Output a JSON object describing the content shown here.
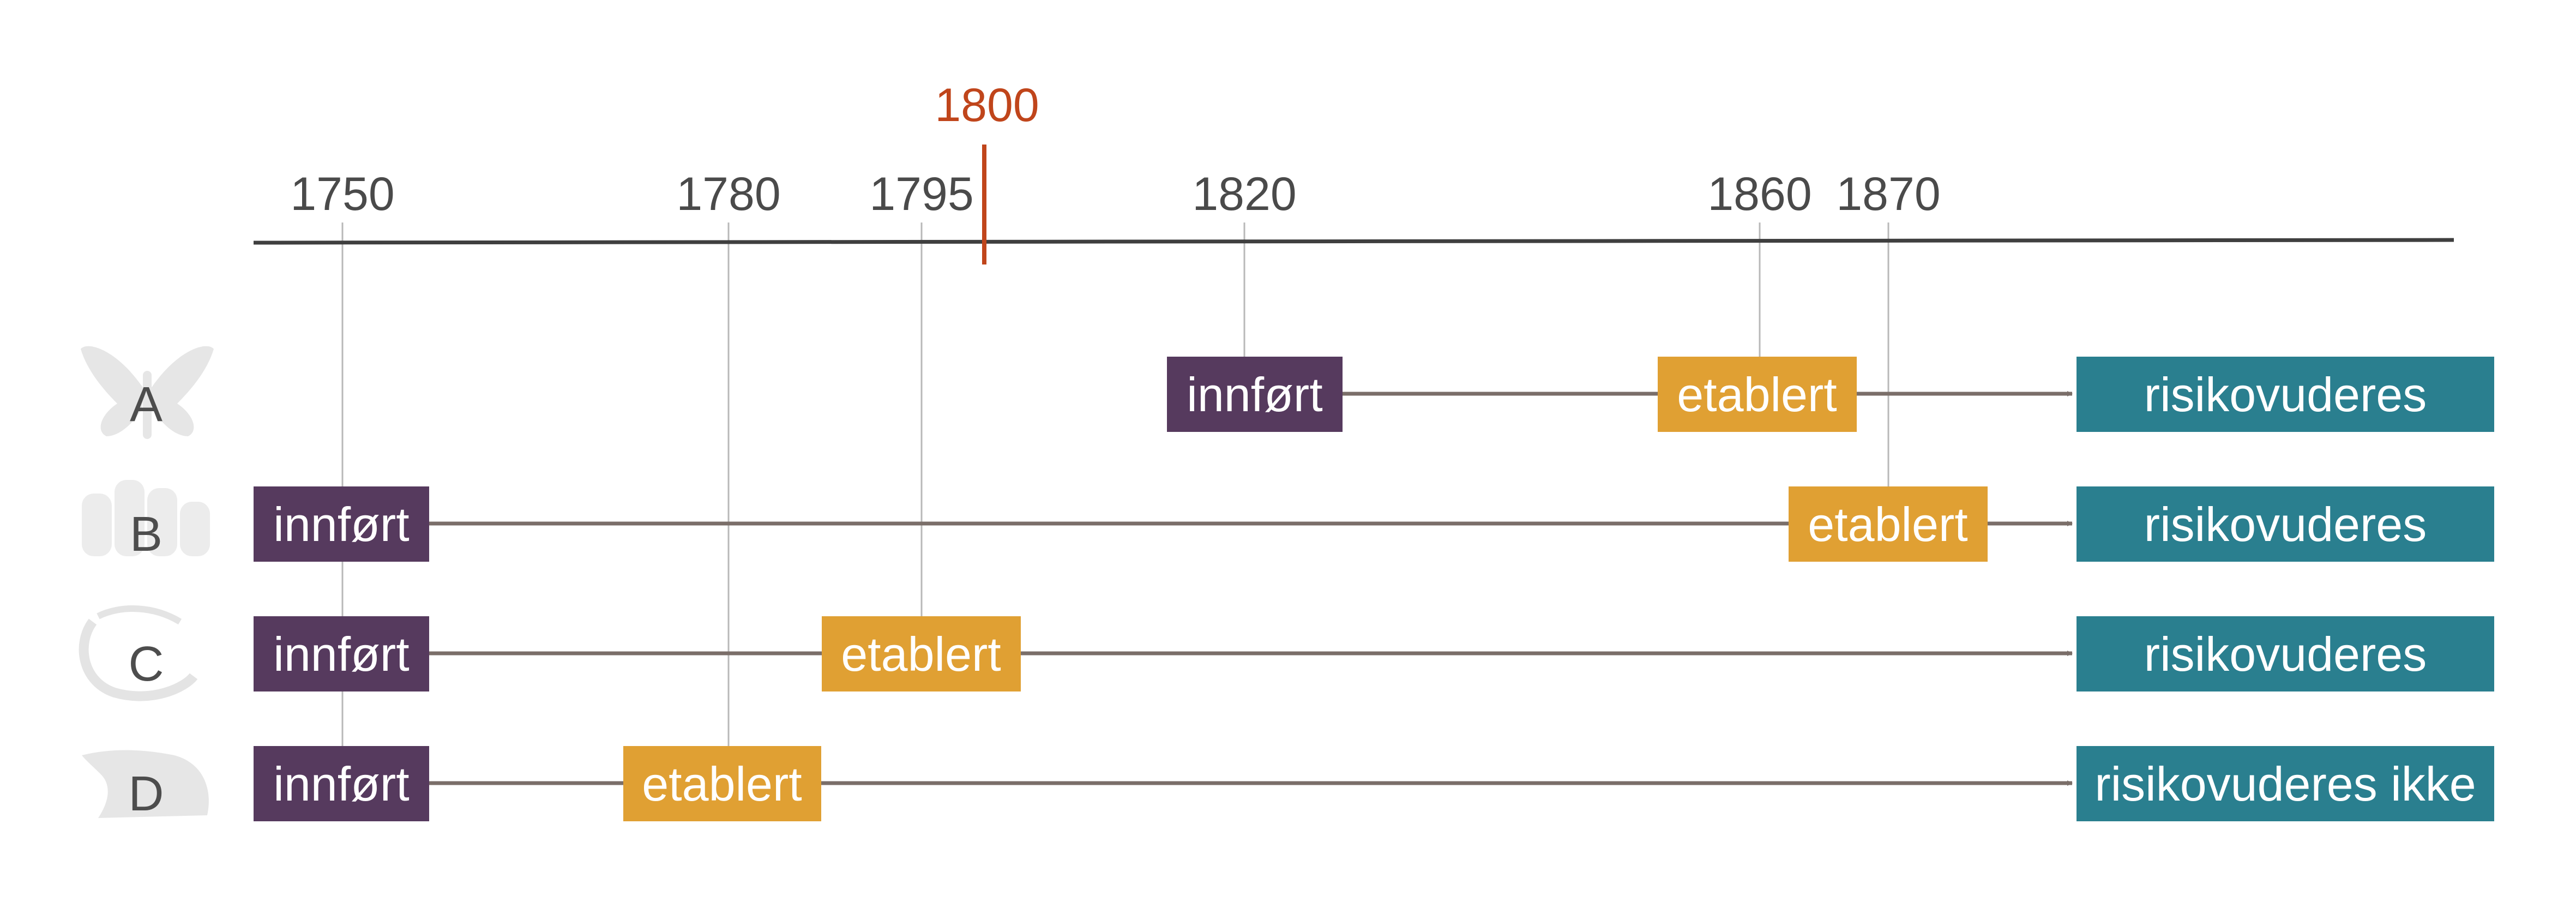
{
  "colors": {
    "axis": "#3f3f3f",
    "marker": "#c0451b",
    "tick_text": "#4a4a4a",
    "guide": "#b8b8b8",
    "arrow": "#7a6e69",
    "innfort": "#563a5e",
    "etablert": "#e0a033",
    "risiko": "#2a7f8f",
    "icon": "#e6e6e6"
  },
  "timeline": {
    "ticks": [
      "1750",
      "1780",
      "1795",
      "1820",
      "1860",
      "1870"
    ],
    "marker": "1800"
  },
  "rows": [
    {
      "letter": "A",
      "icon": "butterfly-icon",
      "introduced": "1820",
      "established": "1860",
      "introduced_label": "innført",
      "established_label": "etablert",
      "result": "risikovuderes"
    },
    {
      "letter": "B",
      "icon": "coral-icon",
      "introduced": "1750",
      "established": "1870",
      "introduced_label": "innført",
      "established_label": "etablert",
      "result": "risikovuderes"
    },
    {
      "letter": "C",
      "icon": "worm-icon",
      "introduced": "1750",
      "established": "1795",
      "introduced_label": "innført",
      "established_label": "etablert",
      "result": "risikovuderes"
    },
    {
      "letter": "D",
      "icon": "snail-icon",
      "introduced": "1750",
      "established": "1780",
      "introduced_label": "innført",
      "established_label": "etablert",
      "result": "risikovuderes ikke"
    }
  ]
}
